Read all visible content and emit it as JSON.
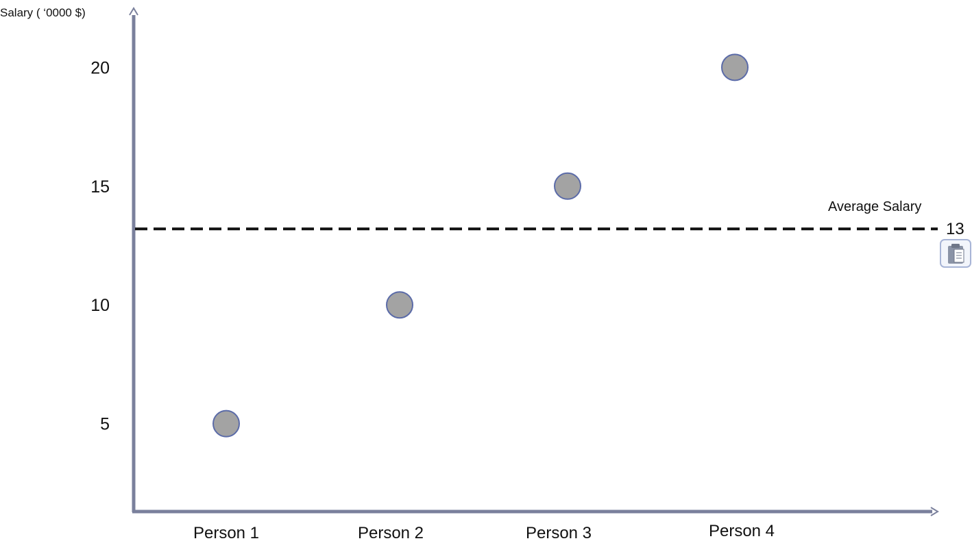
{
  "chart_data": {
    "type": "scatter",
    "ylabel": "Salary ( ‘0000  $)",
    "xlabel": "",
    "categories": [
      "Person 1",
      "Person 2",
      "Person 3",
      "Person 4"
    ],
    "y_ticks": [
      "5",
      "10",
      "15",
      "20"
    ],
    "y_tick_values": [
      5,
      10,
      15,
      20
    ],
    "series": [
      {
        "values": [
          5,
          10,
          15,
          20
        ]
      }
    ],
    "ylim": [
      1.3,
      22.2
    ],
    "reference_line": {
      "label": "Average Salary",
      "value": 13.2,
      "value_label": "13",
      "style": "dashed"
    },
    "grid": false,
    "colors": {
      "axis": "#7a809c",
      "point_fill": "#a3a3a3",
      "point_stroke": "#5b6ba8",
      "reference_line": "#111111",
      "text": "#111111"
    }
  },
  "icons": {
    "clipboard": "clipboard-icon"
  }
}
